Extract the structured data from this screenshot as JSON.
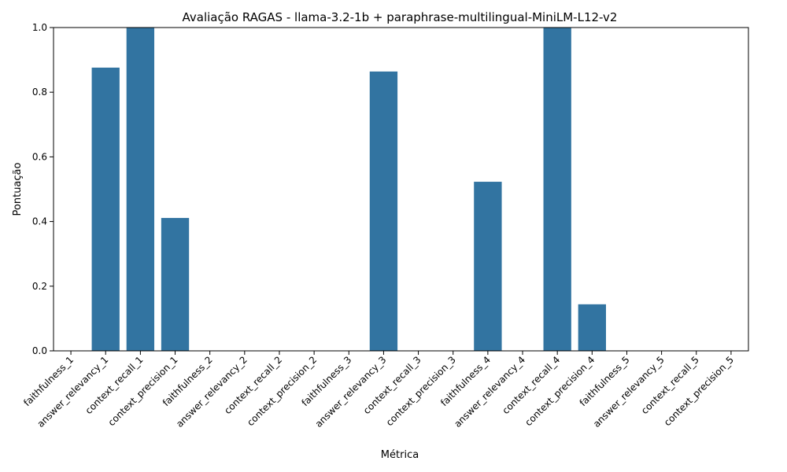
{
  "chart_data": {
    "type": "bar",
    "title": "Avaliação RAGAS - llama-3.2-1b + paraphrase-multilingual-MiniLM-L12-v2",
    "xlabel": "Métrica",
    "ylabel": "Pontuação",
    "ylim": [
      0,
      1
    ],
    "yticks": [
      "0.0",
      "0.2",
      "0.4",
      "0.6",
      "0.8",
      "1.0"
    ],
    "grid": false,
    "bar_color": "#3274a1",
    "categories": [
      "faithfulness_1",
      "answer_relevancy_1",
      "context_recall_1",
      "context_precision_1",
      "faithfulness_2",
      "answer_relevancy_2",
      "context_recall_2",
      "context_precision_2",
      "faithfulness_3",
      "answer_relevancy_3",
      "context_recall_3",
      "context_precision_3",
      "faithfulness_4",
      "answer_relevancy_4",
      "context_recall_4",
      "context_precision_4",
      "faithfulness_5",
      "answer_relevancy_5",
      "context_recall_5",
      "context_precision_5"
    ],
    "values": [
      0,
      0.876,
      1.0,
      0.411,
      0,
      0,
      0,
      0,
      0,
      0.864,
      0,
      0,
      0.523,
      0,
      1.0,
      0.144,
      0,
      0,
      0,
      0
    ]
  }
}
